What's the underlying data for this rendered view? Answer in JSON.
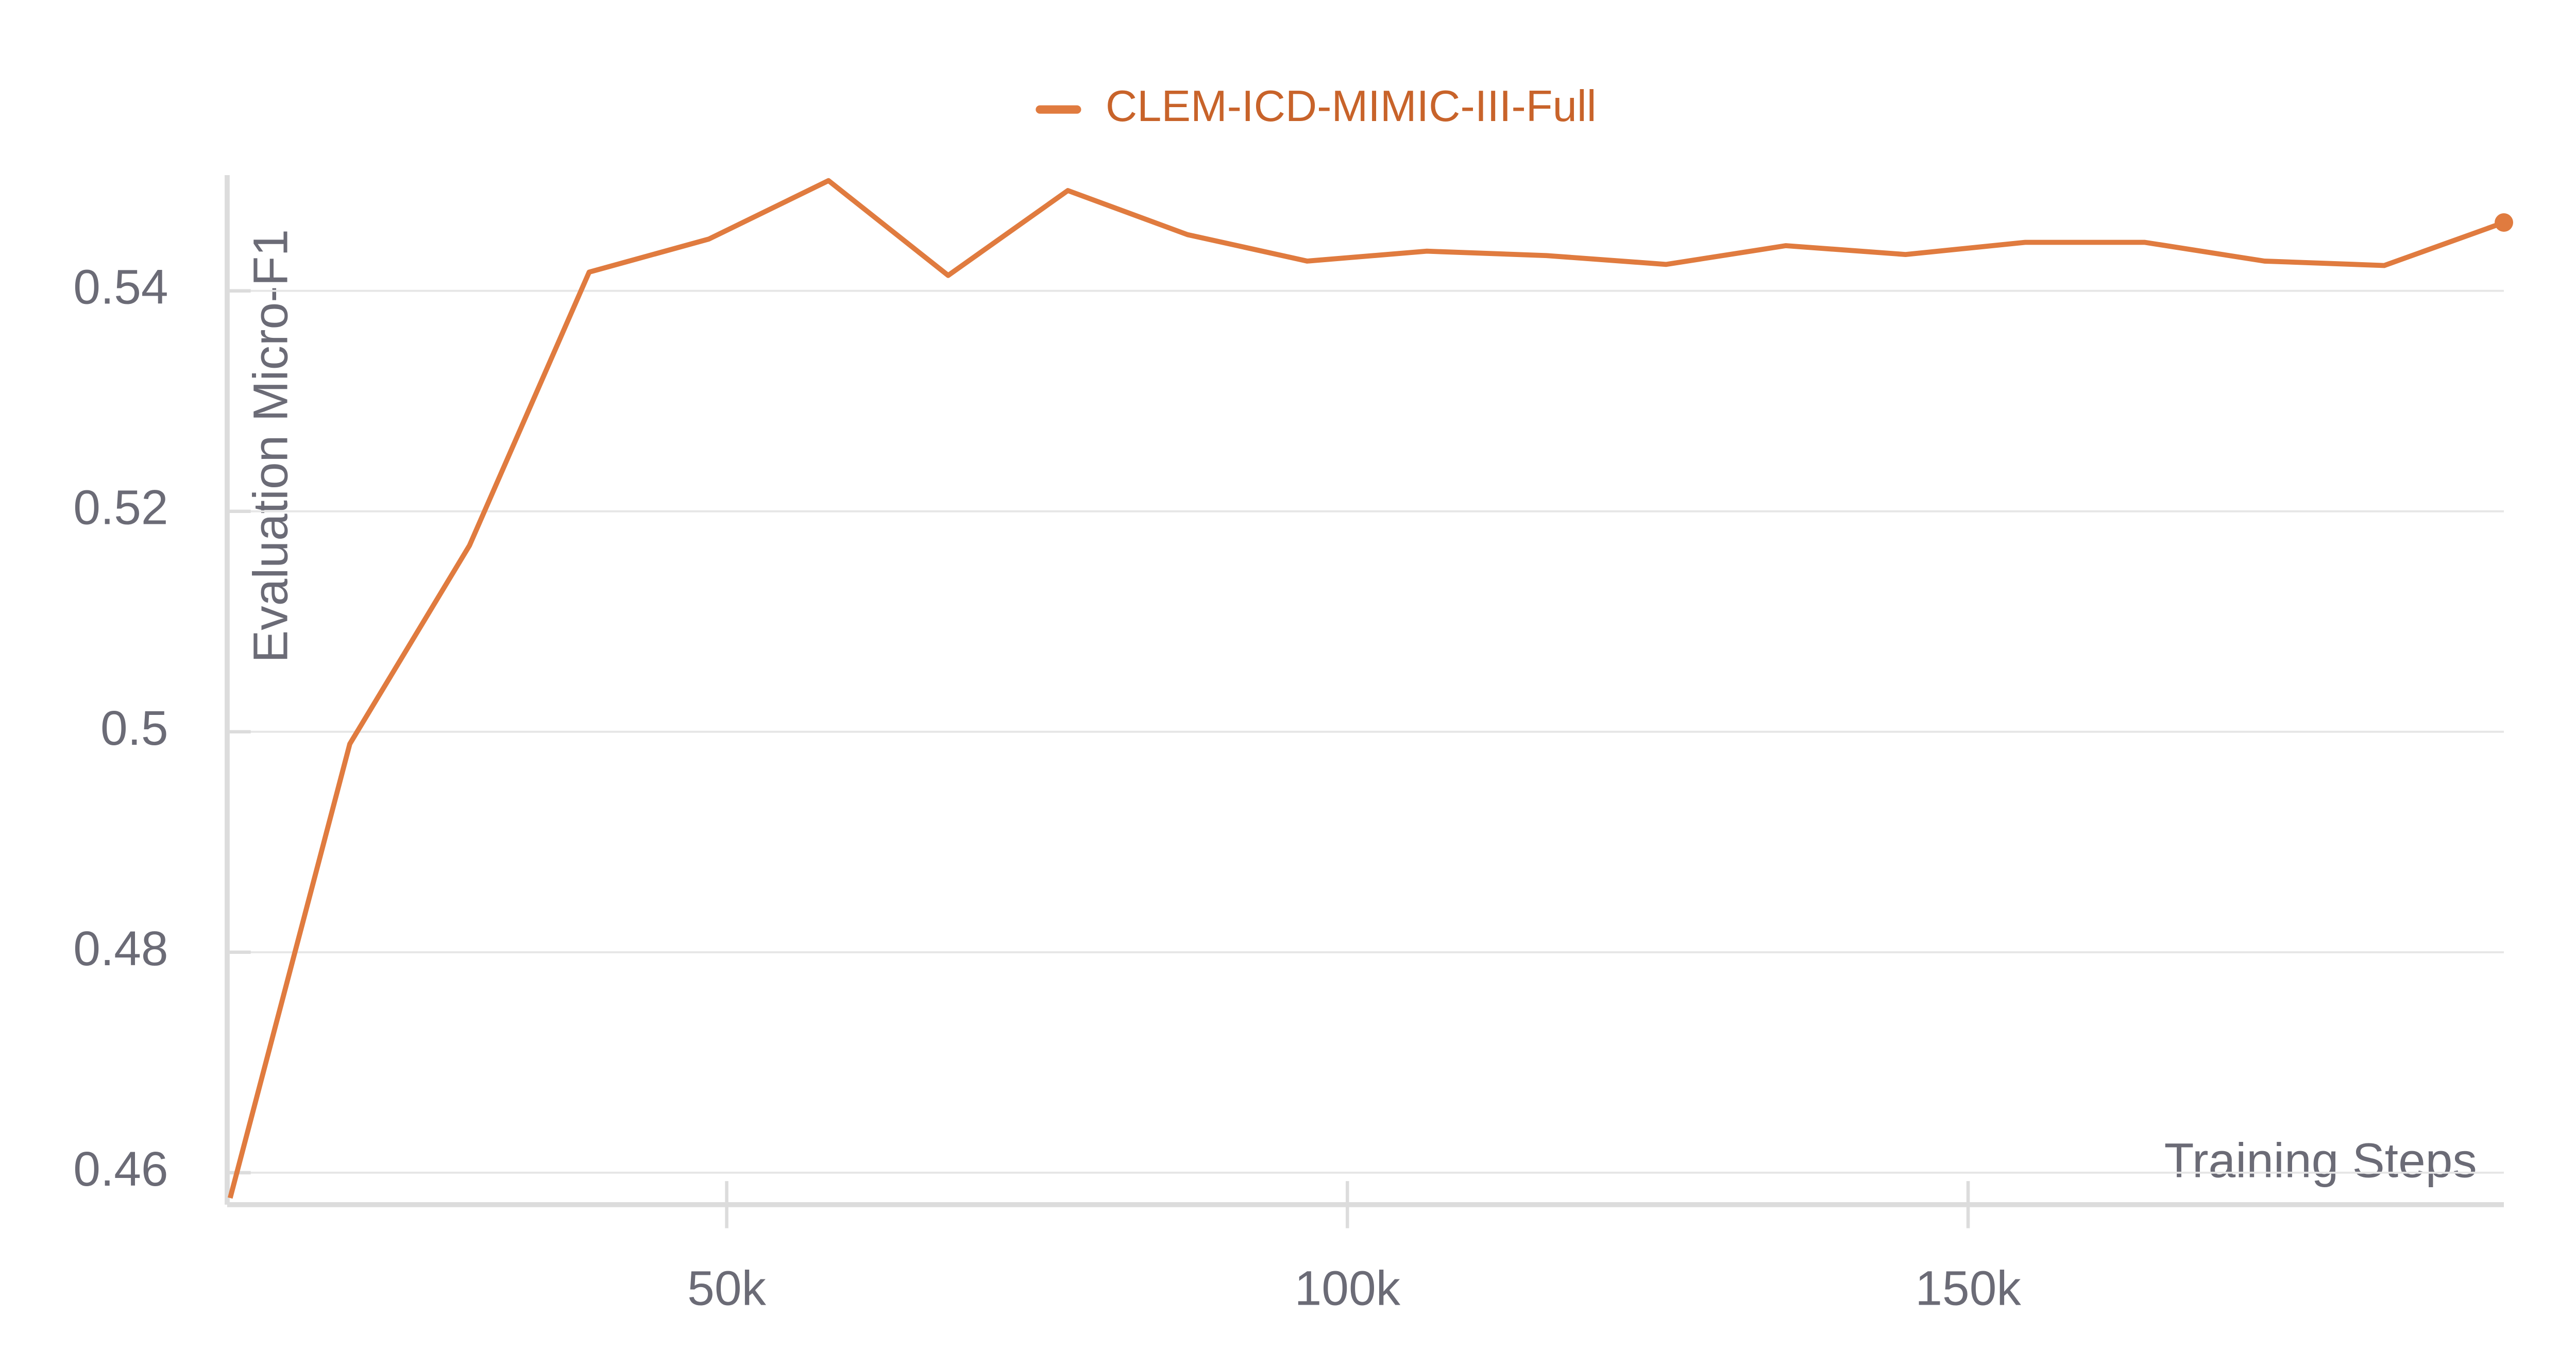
{
  "chart_data": {
    "type": "line",
    "y_label": "Evaluation Micro-F1",
    "x_label": "Training Steps",
    "x": [
      10000,
      19640,
      29280,
      38920,
      48560,
      58200,
      67840,
      77480,
      87120,
      96760,
      106400,
      116040,
      125680,
      135320,
      144960,
      154600,
      164240,
      173880,
      183520,
      193160
    ],
    "series": [
      {
        "name": "CLEM-ICD-MIMIC-III-Full",
        "color": "#e07b3f",
        "values": [
          0.4577,
          0.4989,
          0.5169,
          0.5417,
          0.5447,
          0.55,
          0.5414,
          0.5491,
          0.5451,
          0.5427,
          0.5436,
          0.5432,
          0.5424,
          0.5441,
          0.5433,
          0.5444,
          0.5444,
          0.5427,
          0.5423,
          0.5462
        ]
      }
    ],
    "xlim": [
      9760,
      193160
    ],
    "ylim": [
      0.4571,
      0.5505
    ],
    "xticks": [
      {
        "value": 50000,
        "label": "50k"
      },
      {
        "value": 100000,
        "label": "100k"
      },
      {
        "value": 150000,
        "label": "150k"
      }
    ],
    "yticks": [
      0.46,
      0.48,
      0.5,
      0.52,
      0.54
    ],
    "grid": true,
    "legend": "top"
  }
}
